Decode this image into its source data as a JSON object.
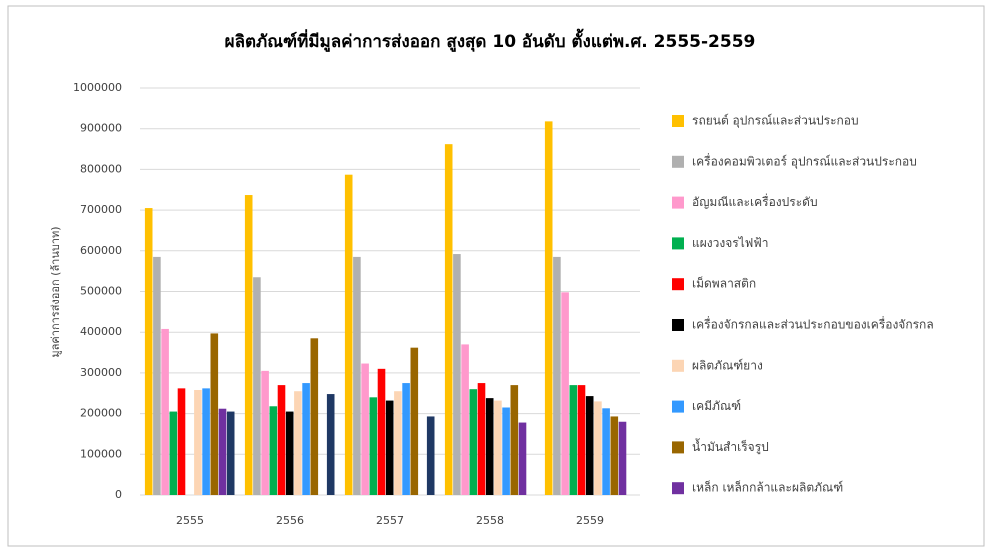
{
  "chart_data": {
    "type": "bar",
    "title": "ผลิตภัณฑ์ที่มีมูลค่าการส่งออก สูงสุด 10 อันดับ ตั้งแต่พ.ศ. 2555-2559",
    "y_label": "มูลค่าการส่งออก (ล้านบาท)",
    "categories": [
      "2555",
      "2556",
      "2557",
      "2558",
      "2559"
    ],
    "series": [
      {
        "name": "รถยนต์ อุปกรณ์และส่วนประกอบ",
        "color": "#ffc000",
        "values": [
          705000,
          737000,
          787000,
          862000,
          918000
        ]
      },
      {
        "name": "เครื่องคอมพิวเตอร์ อุปกรณ์และส่วนประกอบ",
        "color": "#b0b0b0",
        "values": [
          585000,
          535000,
          585000,
          592000,
          585000
        ]
      },
      {
        "name": "อัญมณีและเครื่องประดับ",
        "color": "#ff99cc",
        "values": [
          408000,
          305000,
          323000,
          370000,
          498000
        ]
      },
      {
        "name": "แผงวงจรไฟฟ้า",
        "color": "#00b050",
        "values": [
          205000,
          218000,
          240000,
          260000,
          270000
        ]
      },
      {
        "name": "เม็ดพลาสติก",
        "color": "#ff0000",
        "values": [
          262000,
          270000,
          310000,
          275000,
          270000
        ]
      },
      {
        "name": "เครื่องจักรกลและส่วนประกอบของเครื่องจักรกล",
        "color": "#000000",
        "values": [
          null,
          205000,
          232000,
          238000,
          243000
        ]
      },
      {
        "name": "ผลิตภัณฑ์ยาง",
        "color": "#fcd5b4",
        "values": [
          258000,
          255000,
          255000,
          232000,
          230000
        ]
      },
      {
        "name": "เคมีภัณฑ์",
        "color": "#3399ff",
        "values": [
          262000,
          275000,
          275000,
          215000,
          213000
        ]
      },
      {
        "name": "น้ำมันสำเร็จรูป",
        "color": "#996600",
        "values": [
          397000,
          385000,
          362000,
          270000,
          193000
        ]
      },
      {
        "name": "เหล็ก เหล็กกล้าและผลิตภัณฑ์",
        "color": "#7030a0",
        "values": [
          212000,
          null,
          null,
          178000,
          180000
        ]
      },
      {
        "color": "#1f3864",
        "values": [
          205000,
          248000,
          193000,
          null,
          null
        ]
      }
    ],
    "ylim": [
      0,
      1000000
    ],
    "yticks": [
      0,
      100000,
      200000,
      300000,
      400000,
      500000,
      600000,
      700000,
      800000,
      900000,
      1000000
    ],
    "grid": true
  }
}
